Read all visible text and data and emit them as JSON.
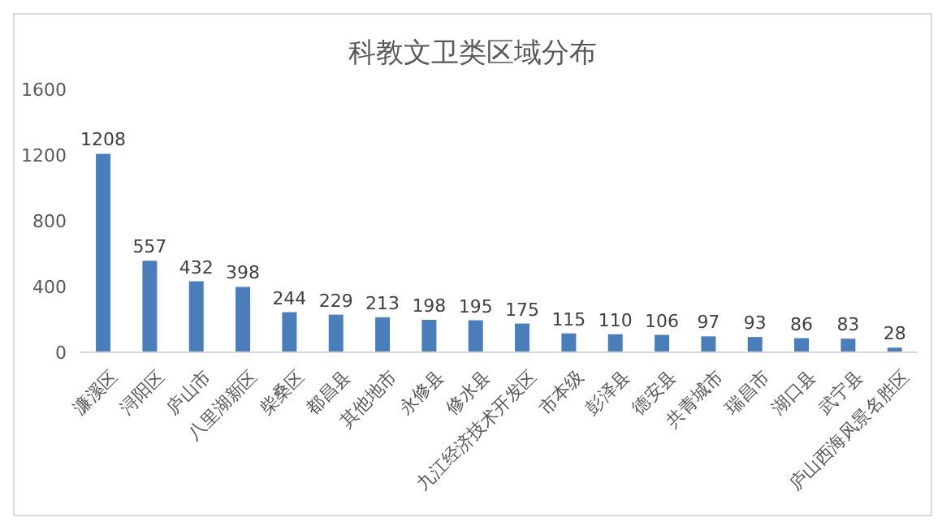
{
  "chart_data": {
    "type": "bar",
    "title": "科教文卫类区域分布",
    "categories": [
      "濂溪区",
      "浔阳区",
      "庐山市",
      "八里湖新区",
      "柴桑区",
      "都昌县",
      "其他地市",
      "永修县",
      "修水县",
      "九江经济技术开发区",
      "市本级",
      "彭泽县",
      "德安县",
      "共青城市",
      "瑞昌市",
      "湖口县",
      "武宁县",
      "庐山西海风景名胜区"
    ],
    "values": [
      1208,
      557,
      432,
      398,
      244,
      229,
      213,
      198,
      195,
      175,
      115,
      110,
      106,
      97,
      93,
      86,
      83,
      28
    ],
    "color": "#4a7ebb",
    "ylim": [
      0,
      1600
    ],
    "yticks": [
      0,
      400,
      800,
      1200,
      1600
    ],
    "grid": false,
    "data_labels": true,
    "legend": false
  }
}
